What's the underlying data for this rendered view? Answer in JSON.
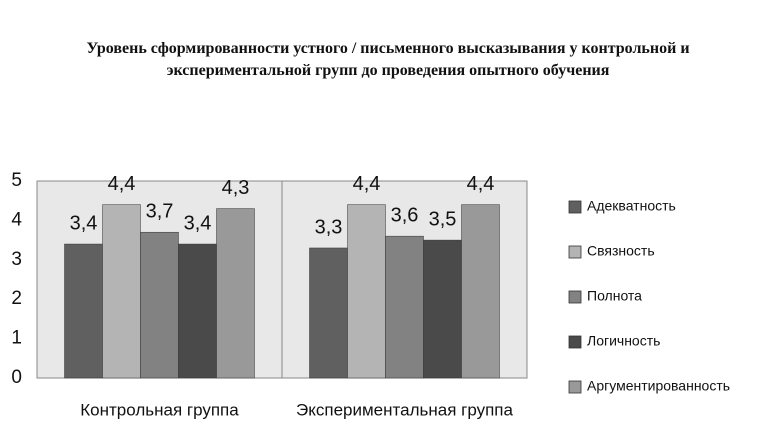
{
  "chart_data": {
    "type": "bar",
    "title": "Уровень сформированности устного / письменного высказывания у контрольной и экспериментальной групп до проведения опытного обучения",
    "categories": [
      "Контрольная группа",
      "Экспериментальная группа"
    ],
    "series": [
      {
        "name": "Адекватность",
        "color": "#606060",
        "values": [
          3.4,
          3.3
        ],
        "value_labels": [
          "3,4",
          "3,3"
        ]
      },
      {
        "name": "Связность",
        "color": "#b4b4b4",
        "values": [
          4.4,
          4.4
        ],
        "value_labels": [
          "4,4",
          "4,4"
        ]
      },
      {
        "name": "Полнота",
        "color": "#828282",
        "values": [
          3.7,
          3.6
        ],
        "value_labels": [
          "3,7",
          "3,6"
        ]
      },
      {
        "name": "Логичность",
        "color": "#4a4a4a",
        "values": [
          3.4,
          3.5
        ],
        "value_labels": [
          "3,4",
          "3,5"
        ]
      },
      {
        "name": "Аргументированность",
        "color": "#999999",
        "values": [
          4.3,
          4.4
        ],
        "value_labels": [
          "4,3",
          "4,4"
        ]
      }
    ],
    "ylim": [
      0,
      5
    ],
    "yticks": [
      0,
      1,
      2,
      3,
      4,
      5
    ],
    "legend": "right"
  }
}
